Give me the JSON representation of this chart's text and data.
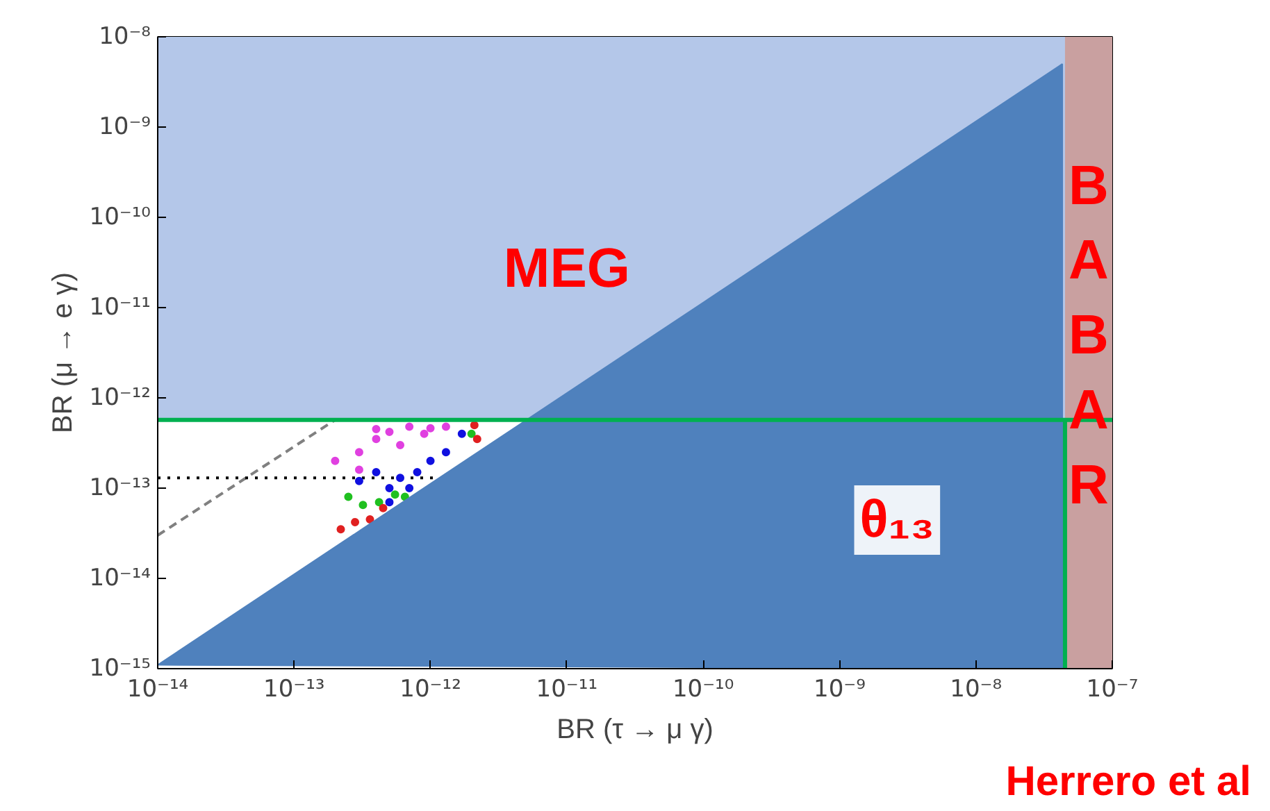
{
  "chart_data": {
    "type": "scatter",
    "log": "xy",
    "xlabel": "BR (τ → μ γ)",
    "ylabel": "BR (μ → e γ)",
    "xlim": [
      1e-14,
      1e-07
    ],
    "ylim": [
      1e-15,
      1e-08
    ],
    "xticks": [
      {
        "value": 1e-14,
        "label": "10⁻¹⁴"
      },
      {
        "value": 1e-13,
        "label": "10⁻¹³"
      },
      {
        "value": 1e-12,
        "label": "10⁻¹²"
      },
      {
        "value": 1e-11,
        "label": "10⁻¹¹"
      },
      {
        "value": 1e-10,
        "label": "10⁻¹⁰"
      },
      {
        "value": 1e-09,
        "label": "10⁻⁹"
      },
      {
        "value": 1e-08,
        "label": "10⁻⁸"
      },
      {
        "value": 1e-07,
        "label": "10⁻⁷"
      }
    ],
    "yticks": [
      {
        "value": 1e-15,
        "label": "10⁻¹⁵"
      },
      {
        "value": 1e-14,
        "label": "10⁻¹⁴"
      },
      {
        "value": 1e-13,
        "label": "10⁻¹³"
      },
      {
        "value": 1e-12,
        "label": "10⁻¹²"
      },
      {
        "value": 1e-11,
        "label": "10⁻¹¹"
      },
      {
        "value": 1e-10,
        "label": "10⁻¹⁰"
      },
      {
        "value": 1e-09,
        "label": "10⁻⁹"
      },
      {
        "value": 1e-08,
        "label": "10⁻⁸"
      }
    ],
    "grid": false,
    "legend": false,
    "marker": "circle",
    "bands": [
      {
        "axis": "y",
        "from": 5.7e-13,
        "to": 1e-08,
        "label": "MEG",
        "color": "#b4c7e9"
      },
      {
        "axis": "x",
        "from": 4.5e-08,
        "to": 1e-07,
        "label": "BABAR",
        "color": "#c9a0a0"
      }
    ],
    "series": [
      {
        "type": "line",
        "marker": "none",
        "color": "#808080",
        "line_style": "dashed",
        "x": [
          1e-14,
          2e-13
        ],
        "values": [
          3e-14,
          5.7e-13
        ]
      },
      {
        "type": "line",
        "marker": "none",
        "color": "#000000",
        "line_style": "dotted",
        "x": [
          1e-14,
          1.1e-12
        ],
        "values": [
          1.3e-13,
          1.3e-13
        ]
      },
      {
        "color": "#e040e0",
        "x": [
          2e-13,
          3e-13,
          4e-13,
          5e-13,
          7e-13,
          1e-12,
          1.3e-12,
          6e-13,
          4e-13,
          9e-13,
          3e-13
        ],
        "values": [
          2e-13,
          2.5e-13,
          3.5e-13,
          4.2e-13,
          4.8e-13,
          4.6e-13,
          4.8e-13,
          3e-13,
          4.5e-13,
          4e-13,
          1.6e-13
        ]
      },
      {
        "color": "#1010e0",
        "x": [
          3e-13,
          4e-13,
          5e-13,
          6e-13,
          8e-13,
          1e-12,
          1.3e-12,
          1.7e-12,
          5e-13,
          7e-13
        ],
        "values": [
          1.2e-13,
          1.5e-13,
          1e-13,
          1.3e-13,
          1.5e-13,
          2e-13,
          2.5e-13,
          4e-13,
          7e-14,
          1e-13
        ]
      },
      {
        "color": "#20c020",
        "x": [
          2.5e-13,
          3.2e-13,
          4.2e-13,
          5.5e-13,
          6.5e-13,
          2e-12
        ],
        "values": [
          8e-14,
          6.5e-14,
          7e-14,
          8.5e-14,
          8e-14,
          4e-13
        ]
      },
      {
        "color": "#e02020",
        "x": [
          2.2e-13,
          2.8e-13,
          3.6e-13,
          4.5e-13,
          2.2e-12,
          2.1e-12
        ],
        "values": [
          3.5e-14,
          4.2e-14,
          4.5e-14,
          6e-14,
          3.5e-13,
          5e-13
        ]
      },
      {
        "type": "area",
        "marker": "none",
        "name": "θ₁₃",
        "color": "#4f81bd",
        "x": [
          1e-14,
          4.3e-08,
          4.3e-08
        ],
        "values": [
          1.1e-15,
          5e-09,
          1e-15
        ]
      },
      {
        "type": "line",
        "marker": "none",
        "color": "#00b050",
        "x": [
          1e-14,
          1e-07
        ],
        "values": [
          5.7e-13,
          5.7e-13
        ]
      },
      {
        "type": "line",
        "marker": "none",
        "color": "#00b050",
        "x": [
          4.5e-08,
          4.5e-08
        ],
        "values": [
          1e-15,
          5.7e-13
        ]
      }
    ],
    "annotations": [
      "Herrero et al"
    ]
  }
}
